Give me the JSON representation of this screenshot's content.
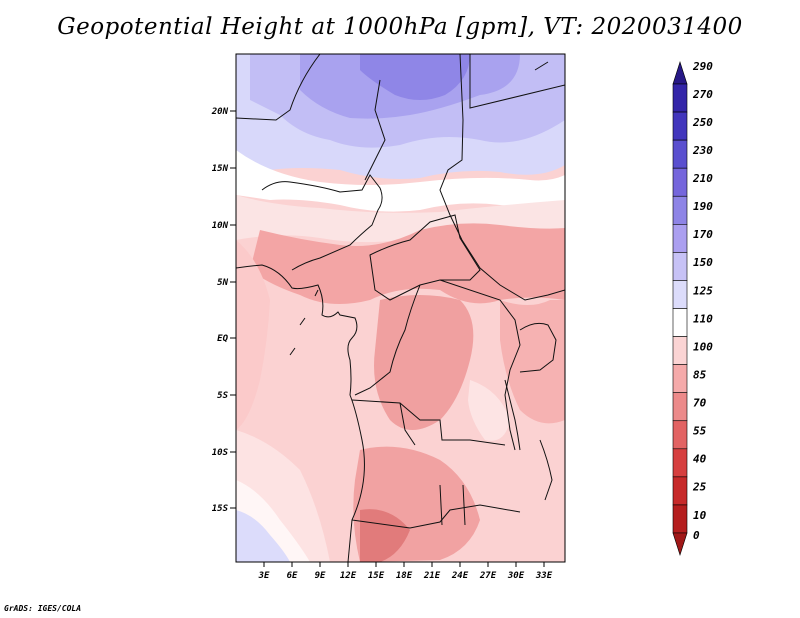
{
  "title": "Geopotential Height at 1000hPa [gpm], VT: 2020031400",
  "credit": "GrADS: IGES/COLA",
  "map": {
    "lat_labels": [
      "20N",
      "15N",
      "10N",
      "5N",
      "EQ",
      "5S",
      "10S",
      "15S"
    ],
    "lon_labels": [
      "3E",
      "6E",
      "9E",
      "12E",
      "15E",
      "18E",
      "21E",
      "24E",
      "27E",
      "30E",
      "33E"
    ]
  },
  "colorbar": {
    "labels": [
      "290",
      "270",
      "250",
      "230",
      "210",
      "190",
      "170",
      "150",
      "125",
      "110",
      "100",
      "85",
      "70",
      "55",
      "40",
      "25",
      "10",
      "0"
    ],
    "colors": [
      "#271886",
      "#3325a8",
      "#4236bd",
      "#5a4fcf",
      "#7566dc",
      "#8e84e6",
      "#ab9ff0",
      "#c7c2f6",
      "#dcdcfb",
      "#ffffff",
      "#fbd4d4",
      "#f5aaaa",
      "#ec8a8a",
      "#e26363",
      "#d63f3f",
      "#c72a2a",
      "#b51e1e",
      "#a01818"
    ]
  },
  "colors": {
    "frame": "#000000",
    "boundary": "#111111"
  }
}
